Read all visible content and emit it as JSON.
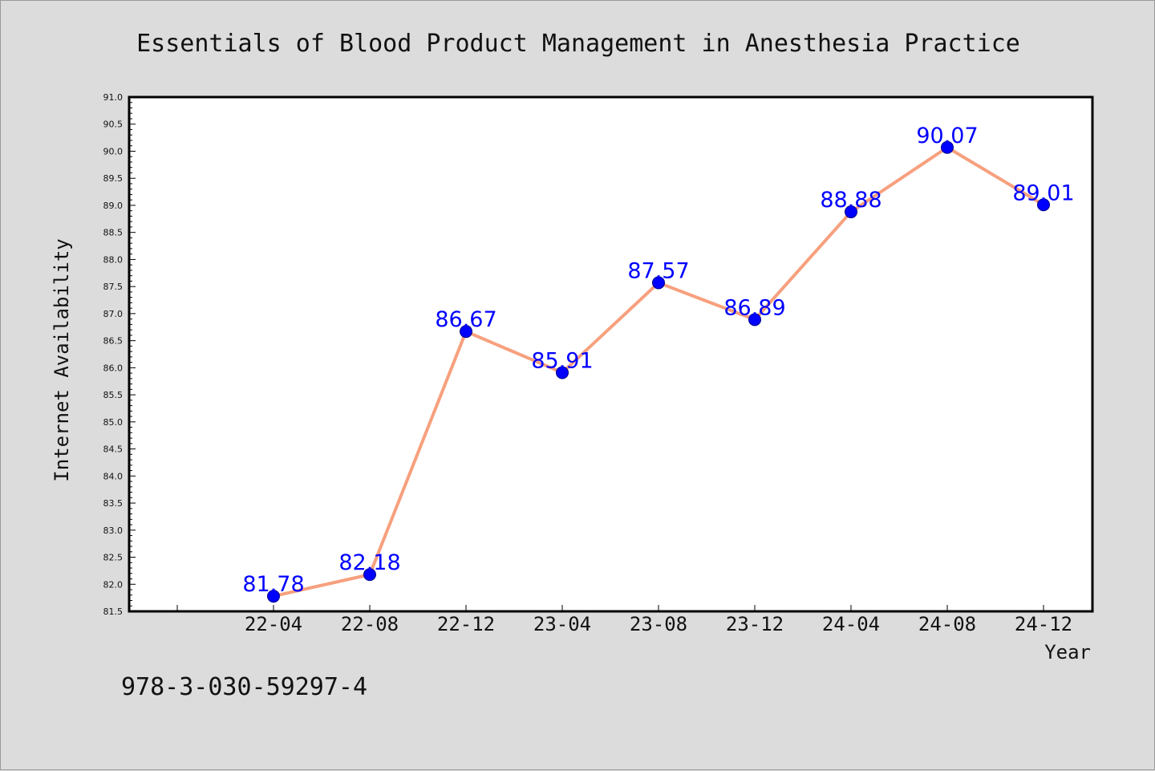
{
  "chart_data": {
    "type": "line",
    "title": "Essentials of Blood Product Management in Anesthesia Practice",
    "xlabel": "Year",
    "ylabel": "Internet Availability",
    "categories": [
      "22-04",
      "22-08",
      "22-12",
      "23-04",
      "23-08",
      "23-12",
      "24-04",
      "24-08",
      "24-12"
    ],
    "values": [
      81.78,
      82.18,
      86.67,
      85.91,
      87.57,
      86.89,
      88.88,
      90.07,
      89.01
    ],
    "data_labels": [
      "81.78",
      "82.18",
      "86.67",
      "85.91",
      "87.57",
      "86.89",
      "88.88",
      "90.07",
      "89.01"
    ],
    "ylim": [
      81.5,
      91.0
    ],
    "yticks": [
      "81.5",
      "82.0",
      "82.5",
      "83.0",
      "83.5",
      "84.0",
      "84.5",
      "85.0",
      "85.5",
      "86.0",
      "86.5",
      "87.0",
      "87.5",
      "88.0",
      "88.5",
      "89.0",
      "89.5",
      "90.0",
      "90.5",
      "91.0"
    ],
    "grid": false,
    "line_color": "#f7a07e",
    "marker_color": "#0000ff",
    "label_color": "#0000ff"
  },
  "footer_code": "978-3-030-59297-4",
  "colors": {
    "background": "#dcdcdc",
    "plot_background": "#ffffff"
  }
}
